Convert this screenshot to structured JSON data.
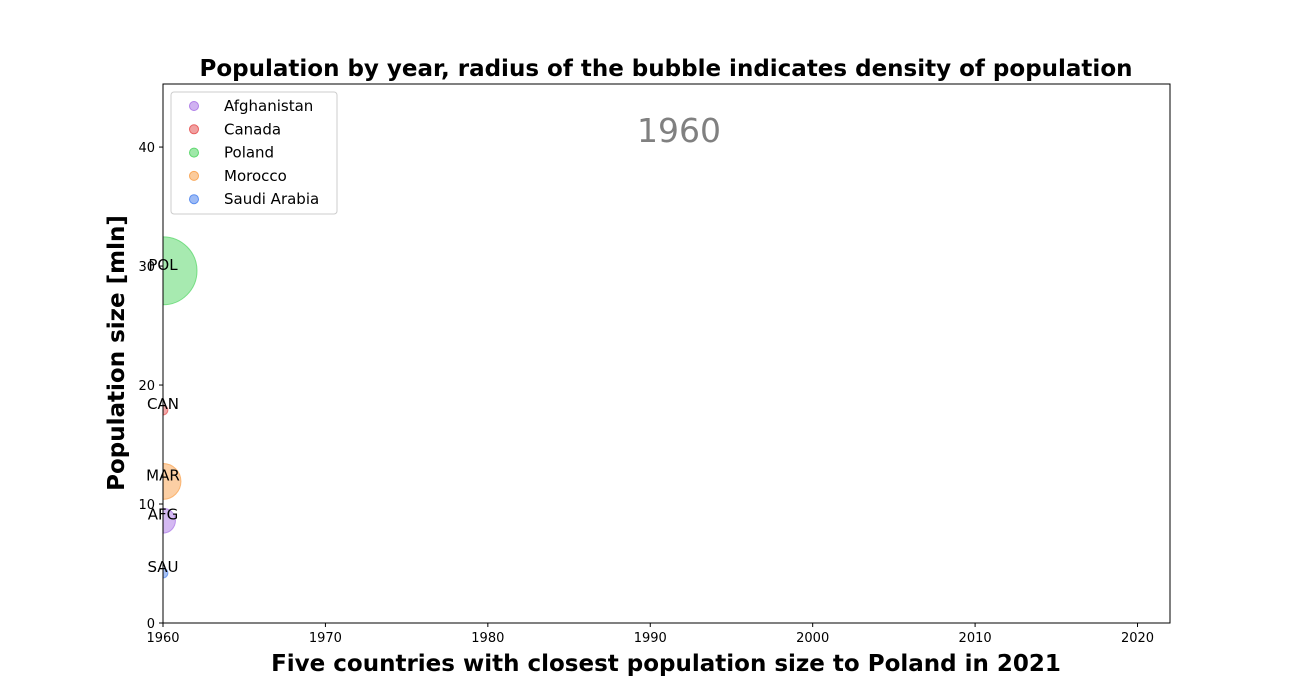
{
  "chart_data": {
    "type": "scatter",
    "title": "Population by year, radius of the bubble indicates density of population",
    "xlabel": "Five countries with closest population size to Poland in 2021",
    "ylabel": "Population size [mln]",
    "xlim": [
      1960,
      2022
    ],
    "ylim": [
      0,
      45.3
    ],
    "xticks": [
      1960,
      1970,
      1980,
      1990,
      2000,
      2010,
      2020
    ],
    "yticks": [
      0,
      10,
      20,
      30,
      40
    ],
    "year_label": "1960",
    "legend_position": "upper-left",
    "series": [
      {
        "name": "Afghanistan",
        "code": "AFG",
        "color": "#b07fe8",
        "x": 1960,
        "y": 8.6,
        "density": 13
      },
      {
        "name": "Canada",
        "code": "CAN",
        "color": "#e86060",
        "x": 1960,
        "y": 17.9,
        "density": 2
      },
      {
        "name": "Poland",
        "code": "POL",
        "color": "#5fd86f",
        "x": 1960,
        "y": 29.6,
        "density": 97
      },
      {
        "name": "Morocco",
        "code": "MAR",
        "color": "#f9a85a",
        "x": 1960,
        "y": 11.9,
        "density": 27
      },
      {
        "name": "Saudi Arabia",
        "code": "SAU",
        "color": "#5b8ef0",
        "x": 1960,
        "y": 4.2,
        "density": 2
      }
    ]
  }
}
